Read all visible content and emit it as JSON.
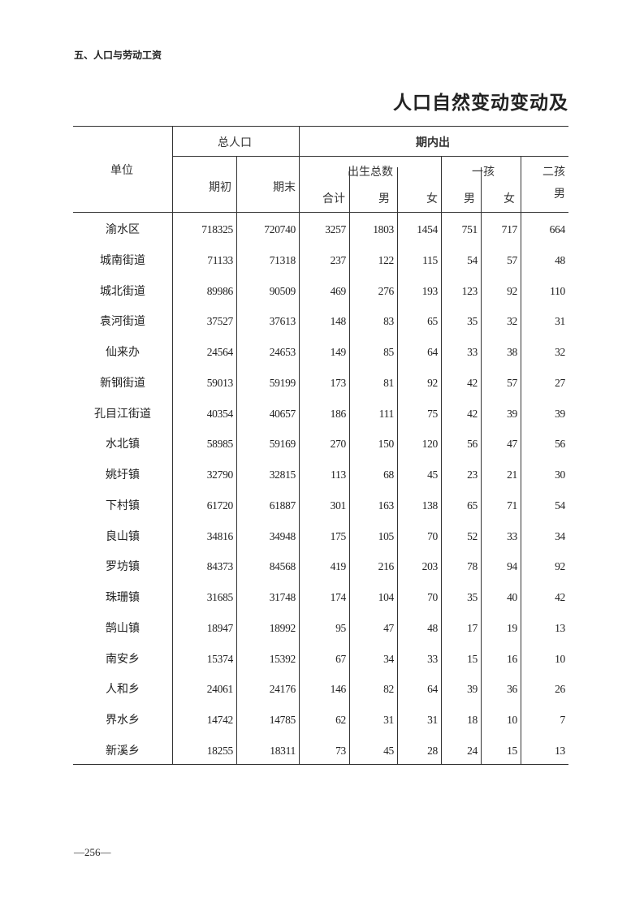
{
  "section_header": "五、人口与劳动工资",
  "title": "人口自然变动变动及",
  "page_number": "—256—",
  "table": {
    "headers": {
      "unit": "单位",
      "total_population": "总人口",
      "period_start": "期初",
      "period_end": "期末",
      "period_births": "期内出",
      "total_births": "出生总数",
      "total": "合计",
      "male": "男",
      "female": "女",
      "first_child": "一孩",
      "first_male": "男",
      "first_female": "女",
      "second_child": "二孩",
      "second_male": "男"
    },
    "rows": [
      {
        "unit": "渝水区",
        "values": [
          "718325",
          "720740",
          "3257",
          "1803",
          "1454",
          "751",
          "717",
          "664"
        ]
      },
      {
        "unit": "城南街道",
        "values": [
          "71133",
          "71318",
          "237",
          "122",
          "115",
          "54",
          "57",
          "48"
        ]
      },
      {
        "unit": "城北街道",
        "values": [
          "89986",
          "90509",
          "469",
          "276",
          "193",
          "123",
          "92",
          "110"
        ]
      },
      {
        "unit": "袁河街道",
        "values": [
          "37527",
          "37613",
          "148",
          "83",
          "65",
          "35",
          "32",
          "31"
        ]
      },
      {
        "unit": "仙来办",
        "values": [
          "24564",
          "24653",
          "149",
          "85",
          "64",
          "33",
          "38",
          "32"
        ]
      },
      {
        "unit": "新钢街道",
        "values": [
          "59013",
          "59199",
          "173",
          "81",
          "92",
          "42",
          "57",
          "27"
        ]
      },
      {
        "unit": "孔目江街道",
        "values": [
          "40354",
          "40657",
          "186",
          "111",
          "75",
          "42",
          "39",
          "39"
        ]
      },
      {
        "unit": "水北镇",
        "values": [
          "58985",
          "59169",
          "270",
          "150",
          "120",
          "56",
          "47",
          "56"
        ]
      },
      {
        "unit": "姚圩镇",
        "values": [
          "32790",
          "32815",
          "113",
          "68",
          "45",
          "23",
          "21",
          "30"
        ]
      },
      {
        "unit": "下村镇",
        "values": [
          "61720",
          "61887",
          "301",
          "163",
          "138",
          "65",
          "71",
          "54"
        ]
      },
      {
        "unit": "良山镇",
        "values": [
          "34816",
          "34948",
          "175",
          "105",
          "70",
          "52",
          "33",
          "34"
        ]
      },
      {
        "unit": "罗坊镇",
        "values": [
          "84373",
          "84568",
          "419",
          "216",
          "203",
          "78",
          "94",
          "92"
        ]
      },
      {
        "unit": "珠珊镇",
        "values": [
          "31685",
          "31748",
          "174",
          "104",
          "70",
          "35",
          "40",
          "42"
        ]
      },
      {
        "unit": "鹄山镇",
        "values": [
          "18947",
          "18992",
          "95",
          "47",
          "48",
          "17",
          "19",
          "13"
        ]
      },
      {
        "unit": "南安乡",
        "values": [
          "15374",
          "15392",
          "67",
          "34",
          "33",
          "15",
          "16",
          "10"
        ]
      },
      {
        "unit": "人和乡",
        "values": [
          "24061",
          "24176",
          "146",
          "82",
          "64",
          "39",
          "36",
          "26"
        ]
      },
      {
        "unit": "界水乡",
        "values": [
          "14742",
          "14785",
          "62",
          "31",
          "31",
          "18",
          "10",
          "7"
        ]
      },
      {
        "unit": "新溪乡",
        "values": [
          "18255",
          "18311",
          "73",
          "45",
          "28",
          "24",
          "15",
          "13"
        ]
      }
    ]
  }
}
